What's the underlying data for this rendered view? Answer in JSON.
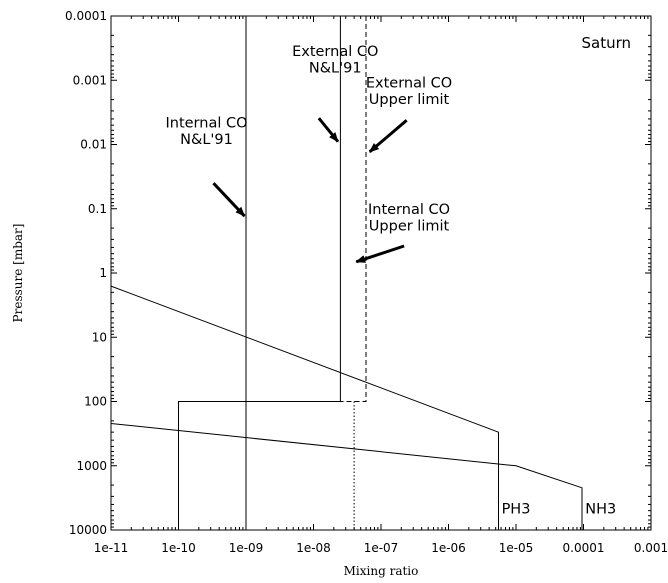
{
  "chart_data": {
    "type": "line",
    "title": "Saturn",
    "xlabel": "Mixing ratio",
    "ylabel": "Pressure [mbar]",
    "xscale": "log",
    "yscale": "log",
    "yinverted": true,
    "xlim": [
      1e-11,
      0.001
    ],
    "ylim": [
      0.0001,
      10000
    ],
    "grid": false,
    "xticks": [
      {
        "value": 1e-11,
        "label": "1e-11"
      },
      {
        "value": 1e-10,
        "label": "1e-10"
      },
      {
        "value": 1e-09,
        "label": "1e-09"
      },
      {
        "value": 1e-08,
        "label": "1e-08"
      },
      {
        "value": 1e-07,
        "label": "1e-07"
      },
      {
        "value": 1e-06,
        "label": "1e-06"
      },
      {
        "value": 1e-05,
        "label": "1e-05"
      },
      {
        "value": 0.0001,
        "label": "0.0001"
      },
      {
        "value": 0.001,
        "label": "0.001"
      }
    ],
    "yticks": [
      {
        "value": 0.0001,
        "label": "0.0001"
      },
      {
        "value": 0.001,
        "label": "0.001"
      },
      {
        "value": 0.01,
        "label": "0.01"
      },
      {
        "value": 0.1,
        "label": "0.1"
      },
      {
        "value": 1,
        "label": "1"
      },
      {
        "value": 10,
        "label": "10"
      },
      {
        "value": 100,
        "label": "100"
      },
      {
        "value": 1000,
        "label": "1000"
      },
      {
        "value": 10000,
        "label": "10000"
      }
    ],
    "series": [
      {
        "dash": "solid",
        "points": [
          [
            1e-09,
            0.0001
          ],
          [
            1e-09,
            10000
          ]
        ]
      },
      {
        "dash": "solid",
        "points": [
          [
            1e-10,
            10000
          ],
          [
            1e-10,
            100
          ],
          [
            2.5e-08,
            100
          ],
          [
            2.5e-08,
            0.0001
          ]
        ]
      },
      {
        "dash": "dashed",
        "points": [
          [
            6e-08,
            0.0001
          ],
          [
            6e-08,
            100
          ],
          [
            1e-09,
            100
          ]
        ]
      },
      {
        "dash": "dotted",
        "points": [
          [
            4e-08,
            100
          ],
          [
            4e-08,
            10000
          ]
        ]
      },
      {
        "dash": "solid",
        "points": [
          [
            1e-11,
            1.6
          ],
          [
            5.5e-06,
            300
          ],
          [
            5.5e-06,
            10000
          ]
        ]
      },
      {
        "dash": "solid",
        "points": [
          [
            1e-11,
            220
          ],
          [
            1e-05,
            1000
          ],
          [
            9.5e-05,
            2200
          ],
          [
            9.5e-05,
            10000
          ]
        ]
      }
    ],
    "annotations": [
      {
        "lines": [
          "External CO",
          "N&L'91"
        ],
        "text_x": 2.1e-08,
        "text_y": 0.00042,
        "arrow_from": [
          1.2e-08,
          0.0039
        ],
        "arrow_to": [
          2.3e-08,
          0.009
        ]
      },
      {
        "lines": [
          "External CO",
          "Upper limit"
        ],
        "text_x": 2.6e-07,
        "text_y": 0.0013,
        "arrow_from": [
          2.4e-07,
          0.0042
        ],
        "arrow_to": [
          6.8e-08,
          0.013
        ]
      },
      {
        "lines": [
          "Internal CO",
          "N&L'91"
        ],
        "text_x": 2.6e-10,
        "text_y": 0.0054,
        "arrow_from": [
          3.3e-10,
          0.04
        ],
        "arrow_to": [
          9.5e-10,
          0.13
        ]
      },
      {
        "lines": [
          "Internal CO",
          "Upper limit"
        ],
        "text_x": 2.6e-07,
        "text_y": 0.12,
        "arrow_from": [
          2.2e-07,
          0.38
        ],
        "arrow_to": [
          4.3e-08,
          0.67
        ]
      },
      {
        "lines": [
          "PH3"
        ],
        "text_x": 1e-05,
        "text_y": 5500
      },
      {
        "lines": [
          "NH3"
        ],
        "text_x": 0.00018,
        "text_y": 5500
      }
    ]
  }
}
